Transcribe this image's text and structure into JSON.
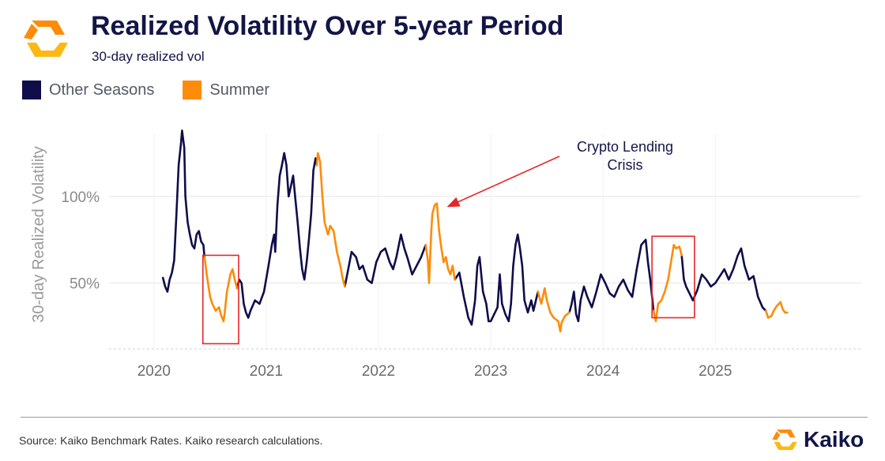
{
  "header": {
    "title": "Realized Volatility Over 5-year Period",
    "subtitle": "30-day realized vol"
  },
  "legend": {
    "items": [
      {
        "label": "Other Seasons",
        "color": "#0f0d4a"
      },
      {
        "label": "Summer",
        "color": "#fd8c0a"
      }
    ]
  },
  "footer": {
    "source": "Source: Kaiko Benchmark Rates. Kaiko research calculations.",
    "brand": "Kaiko"
  },
  "colors": {
    "other": "#0f0d4a",
    "summer": "#fd8c0a",
    "highlight_box": "#e8262a",
    "arrow": "#e8262a",
    "logo_orange": "#fd8c0a",
    "logo_yellow": "#fdb913"
  },
  "icons": {
    "logo": "kaiko-logo-icon"
  },
  "chart_data": {
    "type": "line",
    "title": "Realized Volatility Over 5-year Period",
    "ylabel": "30-day Realized Volatility",
    "xlabel": "",
    "xlim": [
      2019.6,
      2026.3
    ],
    "ylim": [
      12,
      145
    ],
    "y_ticks": [
      {
        "value": 50,
        "label": "50%"
      },
      {
        "value": 100,
        "label": "100%"
      }
    ],
    "x_ticks": [
      {
        "value": 2020,
        "label": "2020"
      },
      {
        "value": 2021,
        "label": "2021"
      },
      {
        "value": 2022,
        "label": "2022"
      },
      {
        "value": 2023,
        "label": "2023"
      },
      {
        "value": 2024,
        "label": "2024"
      },
      {
        "value": 2025,
        "label": "2025"
      }
    ],
    "grid": true,
    "series": [
      {
        "name": "Summer",
        "season": "summer",
        "points": [
          [
            2020.45,
            65
          ],
          [
            2020.47,
            55
          ],
          [
            2020.5,
            42
          ],
          [
            2020.52,
            38
          ],
          [
            2020.55,
            34
          ],
          [
            2020.58,
            36
          ],
          [
            2020.6,
            31
          ],
          [
            2020.62,
            28
          ],
          [
            2020.63,
            33
          ],
          [
            2020.65,
            45
          ],
          [
            2020.68,
            55
          ],
          [
            2020.7,
            58
          ],
          [
            2020.72,
            52
          ],
          [
            2020.74,
            47
          ]
        ]
      },
      {
        "name": "Summer",
        "season": "summer",
        "points": [
          [
            2021.45,
            118
          ],
          [
            2021.46,
            125
          ],
          [
            2021.48,
            120
          ],
          [
            2021.5,
            100
          ],
          [
            2021.52,
            85
          ],
          [
            2021.55,
            78
          ],
          [
            2021.57,
            83
          ],
          [
            2021.6,
            80
          ],
          [
            2021.63,
            68
          ],
          [
            2021.66,
            60
          ],
          [
            2021.68,
            53
          ],
          [
            2021.7,
            48
          ]
        ]
      },
      {
        "name": "Summer",
        "season": "summer",
        "points": [
          [
            2022.42,
            72
          ],
          [
            2022.44,
            63
          ],
          [
            2022.45,
            50
          ],
          [
            2022.47,
            80
          ],
          [
            2022.48,
            90
          ],
          [
            2022.5,
            95
          ],
          [
            2022.52,
            96
          ],
          [
            2022.54,
            80
          ],
          [
            2022.56,
            70
          ],
          [
            2022.58,
            62
          ],
          [
            2022.6,
            65
          ],
          [
            2022.62,
            58
          ],
          [
            2022.64,
            55
          ],
          [
            2022.66,
            60
          ],
          [
            2022.68,
            52
          ]
        ]
      },
      {
        "name": "Summer",
        "season": "summer",
        "points": [
          [
            2023.42,
            45
          ],
          [
            2023.45,
            38
          ],
          [
            2023.48,
            47
          ],
          [
            2023.5,
            40
          ],
          [
            2023.53,
            33
          ],
          [
            2023.56,
            30
          ],
          [
            2023.6,
            28
          ],
          [
            2023.62,
            22
          ],
          [
            2023.63,
            27
          ],
          [
            2023.66,
            31
          ],
          [
            2023.7,
            33
          ]
        ]
      },
      {
        "name": "Summer",
        "season": "summer",
        "points": [
          [
            2024.45,
            34
          ],
          [
            2024.47,
            28
          ],
          [
            2024.49,
            38
          ],
          [
            2024.52,
            40
          ],
          [
            2024.55,
            45
          ],
          [
            2024.58,
            52
          ],
          [
            2024.6,
            60
          ],
          [
            2024.62,
            68
          ],
          [
            2024.63,
            72
          ],
          [
            2024.65,
            70
          ],
          [
            2024.68,
            71
          ],
          [
            2024.7,
            66
          ]
        ]
      },
      {
        "name": "Summer",
        "season": "summer",
        "points": [
          [
            2025.45,
            34
          ],
          [
            2025.47,
            30
          ],
          [
            2025.5,
            31
          ],
          [
            2025.52,
            34
          ],
          [
            2025.55,
            37
          ],
          [
            2025.58,
            39
          ],
          [
            2025.6,
            35
          ],
          [
            2025.62,
            33
          ],
          [
            2025.64,
            33
          ]
        ]
      },
      {
        "name": "Other Seasons",
        "season": "other",
        "points": [
          [
            2020.08,
            53
          ],
          [
            2020.1,
            48
          ],
          [
            2020.12,
            45
          ],
          [
            2020.14,
            52
          ],
          [
            2020.16,
            56
          ],
          [
            2020.18,
            63
          ],
          [
            2020.2,
            90
          ],
          [
            2020.22,
            118
          ],
          [
            2020.24,
            130
          ],
          [
            2020.25,
            138
          ],
          [
            2020.27,
            128
          ],
          [
            2020.28,
            100
          ],
          [
            2020.3,
            85
          ],
          [
            2020.32,
            78
          ],
          [
            2020.34,
            72
          ],
          [
            2020.36,
            70
          ],
          [
            2020.38,
            78
          ],
          [
            2020.4,
            80
          ],
          [
            2020.42,
            74
          ],
          [
            2020.44,
            72
          ],
          [
            2020.45,
            65
          ]
        ]
      },
      {
        "name": "Other Seasons",
        "season": "other",
        "points": [
          [
            2020.74,
            47
          ],
          [
            2020.76,
            52
          ],
          [
            2020.78,
            50
          ],
          [
            2020.8,
            38
          ],
          [
            2020.82,
            33
          ],
          [
            2020.84,
            30
          ],
          [
            2020.86,
            34
          ],
          [
            2020.9,
            40
          ],
          [
            2020.94,
            38
          ],
          [
            2020.98,
            45
          ],
          [
            2021.02,
            60
          ],
          [
            2021.05,
            72
          ],
          [
            2021.07,
            78
          ],
          [
            2021.08,
            68
          ],
          [
            2021.1,
            95
          ],
          [
            2021.12,
            112
          ],
          [
            2021.14,
            118
          ],
          [
            2021.16,
            125
          ],
          [
            2021.18,
            118
          ],
          [
            2021.2,
            100
          ],
          [
            2021.22,
            106
          ],
          [
            2021.24,
            112
          ],
          [
            2021.26,
            98
          ],
          [
            2021.28,
            85
          ],
          [
            2021.3,
            70
          ],
          [
            2021.32,
            58
          ],
          [
            2021.34,
            52
          ],
          [
            2021.36,
            62
          ],
          [
            2021.38,
            75
          ],
          [
            2021.4,
            90
          ],
          [
            2021.42,
            115
          ],
          [
            2021.44,
            122
          ],
          [
            2021.45,
            118
          ]
        ]
      },
      {
        "name": "Other Seasons",
        "season": "other",
        "points": [
          [
            2021.7,
            48
          ],
          [
            2021.73,
            58
          ],
          [
            2021.76,
            68
          ],
          [
            2021.8,
            65
          ],
          [
            2021.83,
            58
          ],
          [
            2021.86,
            60
          ],
          [
            2021.9,
            52
          ],
          [
            2021.94,
            50
          ],
          [
            2021.98,
            62
          ],
          [
            2022.02,
            68
          ],
          [
            2022.06,
            70
          ],
          [
            2022.1,
            62
          ],
          [
            2022.13,
            58
          ],
          [
            2022.16,
            65
          ],
          [
            2022.2,
            78
          ],
          [
            2022.23,
            70
          ],
          [
            2022.26,
            64
          ],
          [
            2022.3,
            55
          ],
          [
            2022.34,
            60
          ],
          [
            2022.38,
            65
          ],
          [
            2022.42,
            72
          ]
        ]
      },
      {
        "name": "Other Seasons",
        "season": "other",
        "points": [
          [
            2022.68,
            52
          ],
          [
            2022.72,
            56
          ],
          [
            2022.76,
            42
          ],
          [
            2022.8,
            30
          ],
          [
            2022.83,
            26
          ],
          [
            2022.86,
            40
          ],
          [
            2022.88,
            60
          ],
          [
            2022.9,
            65
          ],
          [
            2022.93,
            45
          ],
          [
            2022.96,
            38
          ],
          [
            2022.98,
            28
          ],
          [
            2023.0,
            28
          ],
          [
            2023.03,
            32
          ],
          [
            2023.06,
            36
          ],
          [
            2023.08,
            55
          ],
          [
            2023.1,
            38
          ],
          [
            2023.13,
            32
          ],
          [
            2023.16,
            28
          ],
          [
            2023.18,
            38
          ],
          [
            2023.2,
            60
          ],
          [
            2023.22,
            72
          ],
          [
            2023.24,
            78
          ],
          [
            2023.26,
            70
          ],
          [
            2023.28,
            60
          ],
          [
            2023.3,
            40
          ],
          [
            2023.33,
            33
          ],
          [
            2023.36,
            40
          ],
          [
            2023.38,
            34
          ],
          [
            2023.42,
            45
          ]
        ]
      },
      {
        "name": "Other Seasons",
        "season": "other",
        "points": [
          [
            2023.7,
            33
          ],
          [
            2023.72,
            38
          ],
          [
            2023.74,
            45
          ],
          [
            2023.76,
            32
          ],
          [
            2023.78,
            28
          ],
          [
            2023.8,
            40
          ],
          [
            2023.83,
            48
          ],
          [
            2023.86,
            42
          ],
          [
            2023.9,
            36
          ],
          [
            2023.94,
            45
          ],
          [
            2023.98,
            55
          ],
          [
            2024.02,
            50
          ],
          [
            2024.06,
            44
          ],
          [
            2024.1,
            42
          ],
          [
            2024.14,
            48
          ],
          [
            2024.18,
            52
          ],
          [
            2024.22,
            46
          ],
          [
            2024.26,
            42
          ],
          [
            2024.3,
            58
          ],
          [
            2024.34,
            72
          ],
          [
            2024.38,
            75
          ],
          [
            2024.4,
            62
          ],
          [
            2024.42,
            52
          ],
          [
            2024.44,
            40
          ],
          [
            2024.45,
            34
          ]
        ]
      },
      {
        "name": "Other Seasons",
        "season": "other",
        "points": [
          [
            2024.7,
            66
          ],
          [
            2024.72,
            52
          ],
          [
            2024.74,
            48
          ],
          [
            2024.77,
            44
          ],
          [
            2024.8,
            40
          ],
          [
            2024.84,
            46
          ],
          [
            2024.88,
            55
          ],
          [
            2024.92,
            52
          ],
          [
            2024.96,
            48
          ],
          [
            2025.0,
            50
          ],
          [
            2025.04,
            54
          ],
          [
            2025.08,
            58
          ],
          [
            2025.12,
            52
          ],
          [
            2025.16,
            58
          ],
          [
            2025.2,
            66
          ],
          [
            2025.23,
            70
          ],
          [
            2025.26,
            60
          ],
          [
            2025.3,
            52
          ],
          [
            2025.34,
            54
          ],
          [
            2025.38,
            42
          ],
          [
            2025.42,
            36
          ],
          [
            2025.45,
            34
          ]
        ]
      }
    ],
    "annotations": [
      {
        "text_lines": [
          "Crypto Lending",
          "Crisis"
        ],
        "points_to": [
          2022.52,
          96
        ]
      }
    ],
    "highlights": [
      {
        "x_range": [
          2020.45,
          2020.74
        ],
        "y_range": [
          15,
          66
        ],
        "label": "summer-2020"
      },
      {
        "x_range": [
          2024.45,
          2024.8
        ],
        "y_range": [
          30,
          77
        ],
        "label": "summer-2024"
      }
    ]
  }
}
